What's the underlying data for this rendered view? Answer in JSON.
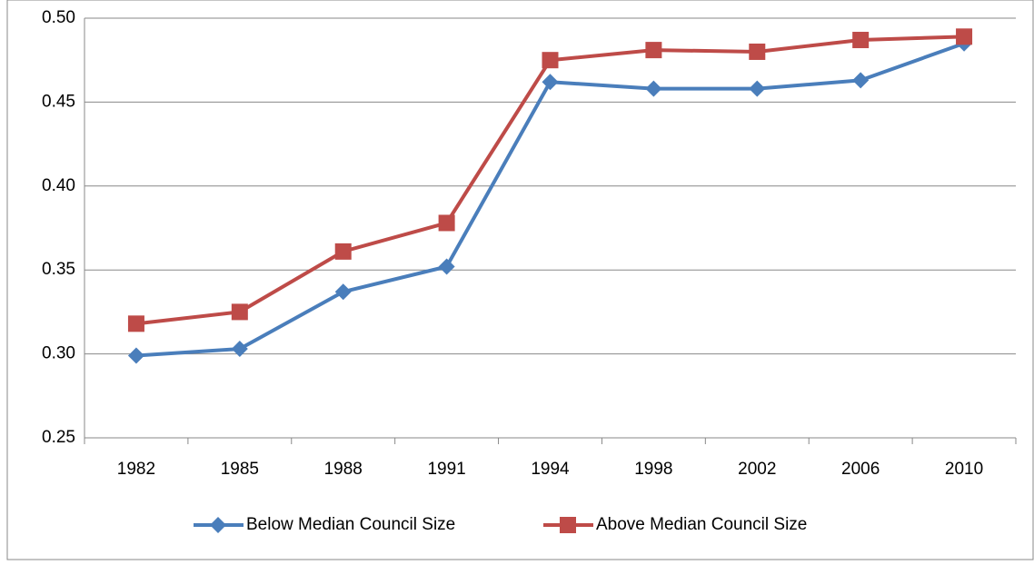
{
  "chart_data": {
    "type": "line",
    "categories": [
      "1982",
      "1985",
      "1988",
      "1991",
      "1994",
      "1998",
      "2002",
      "2006",
      "2010"
    ],
    "series": [
      {
        "name": "Below Median Council Size",
        "color": "#4a7ebb",
        "marker": "diamond",
        "values": [
          0.299,
          0.303,
          0.337,
          0.352,
          0.462,
          0.458,
          0.458,
          0.463,
          0.485
        ]
      },
      {
        "name": "Above Median Council Size",
        "color": "#be4b48",
        "marker": "square",
        "values": [
          0.318,
          0.325,
          0.361,
          0.378,
          0.475,
          0.481,
          0.48,
          0.487,
          0.489
        ]
      }
    ],
    "ylim": [
      0.25,
      0.5
    ],
    "yticks": [
      0.25,
      {
        "value": 0.3,
        "label": "0.30"
      },
      0.35,
      {
        "value": 0.4,
        "label": "0.40"
      },
      0.45,
      {
        "value": 0.5,
        "label": "0.50"
      }
    ],
    "grid": true,
    "legend": "bottom"
  }
}
